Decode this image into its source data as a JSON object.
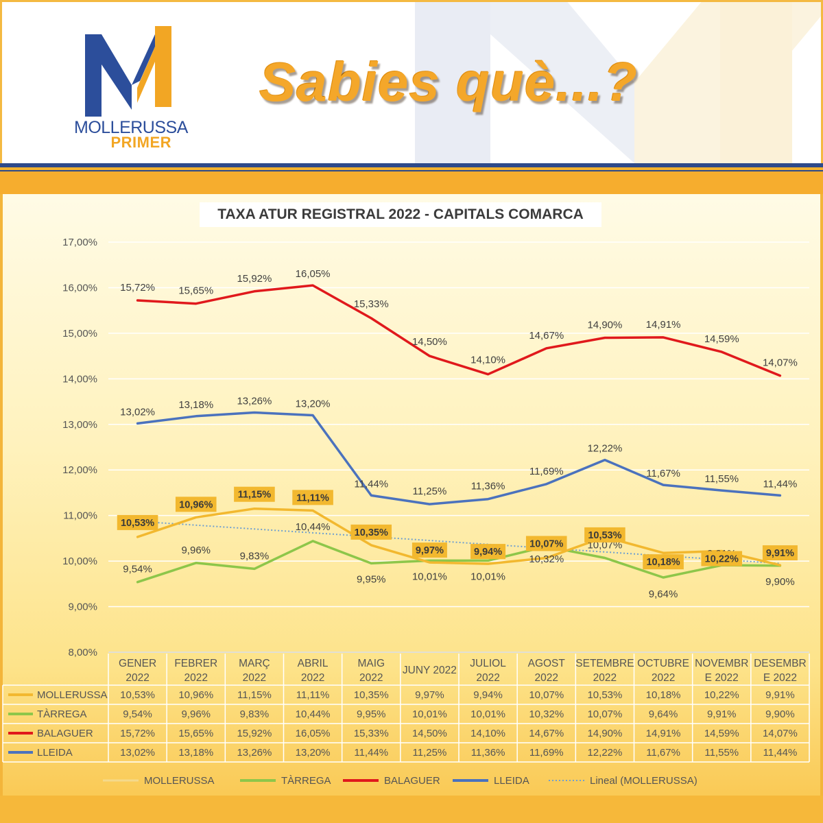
{
  "header": {
    "logo_line1": "MOLLERUSSA",
    "logo_line2": "PRIMER",
    "headline": "Sabies què...?"
  },
  "colors": {
    "mollerussa": "#f2b82f",
    "tarrega": "#8dc64a",
    "balaguer": "#e0191c",
    "lleida": "#4b72bd",
    "trend": "#6e9fd0",
    "brand_blue": "#2c4e9b",
    "brand_orange": "#f2a624"
  },
  "chart_data": {
    "type": "line",
    "title": "TAXA ATUR REGISTRAL 2022 - CAPITALS COMARCA",
    "categories": [
      [
        "GENER",
        "2022"
      ],
      [
        "FEBRER",
        "2022"
      ],
      [
        "MARÇ",
        "2022"
      ],
      [
        "ABRIL",
        "2022"
      ],
      [
        "MAIG",
        "2022"
      ],
      [
        "JUNY 2022"
      ],
      [
        "JULIOL",
        "2022"
      ],
      [
        "AGOST",
        "2022"
      ],
      [
        "SETEMBRE",
        "2022"
      ],
      [
        "OCTUBRE",
        "2022"
      ],
      [
        "NOVEMBR",
        "E 2022"
      ],
      [
        "DESEMBR",
        "E 2022"
      ]
    ],
    "y_ticks": [
      "17,00%",
      "16,00%",
      "15,00%",
      "14,00%",
      "13,00%",
      "12,00%",
      "11,00%",
      "10,00%",
      "9,00%",
      "8,00%"
    ],
    "ylim": [
      8,
      17
    ],
    "grid": "horizontal",
    "series": [
      {
        "name": "MOLLERUSSA",
        "color_key": "mollerussa",
        "label_style": "boxed",
        "values": [
          10.53,
          10.96,
          11.15,
          11.11,
          10.35,
          9.97,
          9.94,
          10.07,
          10.53,
          10.18,
          10.22,
          9.91
        ],
        "data_labels": [
          "10,53%",
          "10,96%",
          "11,15%",
          "11,11%",
          "10,35%",
          "9,97%",
          "9,94%",
          "10,07%",
          "10,53%",
          "10,18%",
          "10,22%",
          "9,91%"
        ]
      },
      {
        "name": "TÀRREGA",
        "color_key": "tarrega",
        "label_style": "plain",
        "values": [
          9.54,
          9.96,
          9.83,
          10.44,
          9.95,
          10.01,
          10.01,
          10.32,
          10.07,
          9.64,
          9.91,
          9.9
        ],
        "data_labels": [
          "9,54%",
          "9,96%",
          "9,83%",
          "10,44%",
          "9,95%",
          "10,01%",
          "10,01%",
          "10,32%",
          "10,07%",
          "9,64%",
          "9,91%",
          "9,90%"
        ]
      },
      {
        "name": "BALAGUER",
        "color_key": "balaguer",
        "label_style": "plain",
        "values": [
          15.72,
          15.65,
          15.92,
          16.05,
          15.33,
          14.5,
          14.1,
          14.67,
          14.9,
          14.91,
          14.59,
          14.07
        ],
        "data_labels": [
          "15,72%",
          "15,65%",
          "15,92%",
          "16,05%",
          "15,33%",
          "14,50%",
          "14,10%",
          "14,67%",
          "14,90%",
          "14,91%",
          "14,59%",
          "14,07%"
        ]
      },
      {
        "name": "LLEIDA",
        "color_key": "lleida",
        "label_style": "plain",
        "values": [
          13.02,
          13.18,
          13.26,
          13.2,
          11.44,
          11.25,
          11.36,
          11.69,
          12.22,
          11.67,
          11.55,
          11.44
        ],
        "data_labels": [
          "13,02%",
          "13,18%",
          "13,26%",
          "13,20%",
          "11,44%",
          "11,25%",
          "11,36%",
          "11,69%",
          "12,22%",
          "11,67%",
          "11,55%",
          "11,44%"
        ]
      }
    ],
    "trendline": {
      "name": "Lineal (MOLLERUSSA)",
      "of_series": "MOLLERUSSA",
      "type": "linear",
      "style": "dotted"
    },
    "legend": {
      "placement": "bottom",
      "entries": [
        "MOLLERUSSA",
        "TÀRREGA",
        "BALAGUER",
        "LLEIDA",
        "Lineal (MOLLERUSSA)"
      ]
    },
    "data_table": {
      "rows": [
        {
          "label": "MOLLERUSSA",
          "cells": [
            "10,53%",
            "10,96%",
            "11,15%",
            "11,11%",
            "10,35%",
            "9,97%",
            "9,94%",
            "10,07%",
            "10,53%",
            "10,18%",
            "10,22%",
            "9,91%"
          ]
        },
        {
          "label": "TÀRREGA",
          "cells": [
            "9,54%",
            "9,96%",
            "9,83%",
            "10,44%",
            "9,95%",
            "10,01%",
            "10,01%",
            "10,32%",
            "10,07%",
            "9,64%",
            "9,91%",
            "9,90%"
          ]
        },
        {
          "label": "BALAGUER",
          "cells": [
            "15,72%",
            "15,65%",
            "15,92%",
            "16,05%",
            "15,33%",
            "14,50%",
            "14,10%",
            "14,67%",
            "14,90%",
            "14,91%",
            "14,59%",
            "14,07%"
          ]
        },
        {
          "label": "LLEIDA",
          "cells": [
            "13,02%",
            "13,18%",
            "13,26%",
            "13,20%",
            "11,44%",
            "11,25%",
            "11,36%",
            "11,69%",
            "12,22%",
            "11,67%",
            "11,55%",
            "11,44%"
          ]
        }
      ]
    }
  }
}
